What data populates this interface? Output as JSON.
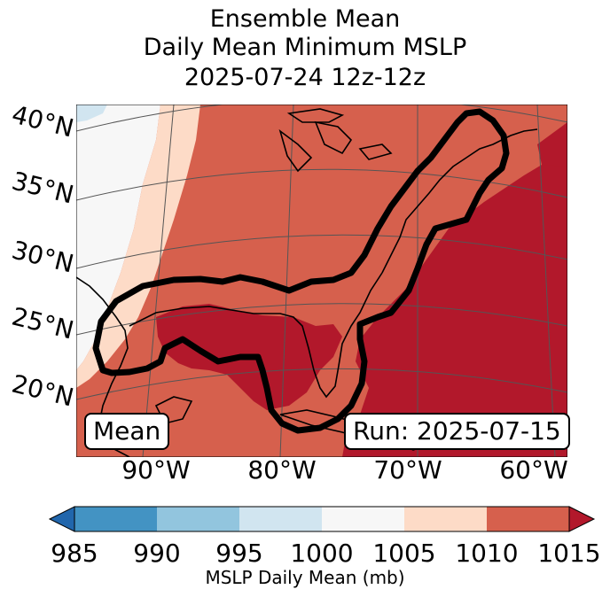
{
  "title": [
    "Ensemble Mean",
    "Daily Mean Minimum MSLP",
    "2025-07-24 12z-12z"
  ],
  "lat_labels": [
    "40°N",
    "35°N",
    "30°N",
    "25°N",
    "20°N"
  ],
  "lon_labels": [
    "90°W",
    "80°W",
    "70°W",
    "60°W"
  ],
  "badges": {
    "left": "Mean",
    "right": "Run: 2025-07-15"
  },
  "colorbar": {
    "ticks": [
      "985",
      "990",
      "995",
      "1000",
      "1005",
      "1010",
      "1015"
    ],
    "label": "MSLP Daily Mean (mb)",
    "colors": [
      "#2166ac",
      "#4393c3",
      "#92c5de",
      "#d1e5f0",
      "#f7f7f7",
      "#fddbc7",
      "#d6604d",
      "#b2182b"
    ]
  },
  "field_colors": {
    "lt1000": "#d1e5f0",
    "1000_1005": "#f7f7f7",
    "1005_1010": "#fddbc7",
    "1010_1015": "#d6604d",
    "gt1015": "#b2182b"
  }
}
